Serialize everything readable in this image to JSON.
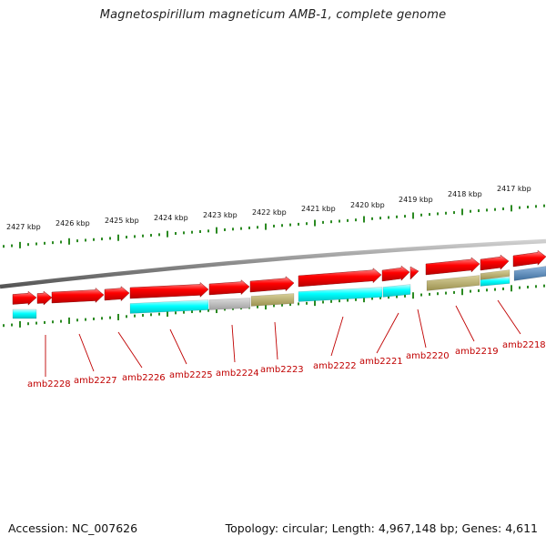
{
  "title": "Magnetospirillum magneticum AMB-1, complete genome",
  "footer": {
    "accession": "Accession: NC_007626",
    "stats": "Topology: circular; Length: 4,967,148 bp; Genes: 4,611"
  },
  "colors": {
    "forward_cds": "#ff0000",
    "cyan": "#00ffff",
    "gray": "#b4b4b4",
    "olive": "#b7ad6a",
    "steelblue": "#4f7fae",
    "tick": "#2b8a22",
    "label": "#c00000",
    "backbone": "#8a8a8a"
  },
  "kbp_labels": [
    "2427 kbp",
    "2426 kbp",
    "2425 kbp",
    "2424 kbp",
    "2423 kbp",
    "2422 kbp",
    "2421 kbp",
    "2420 kbp",
    "2419 kbp",
    "2418 kbp",
    "2417 kbp"
  ],
  "gene_labels": [
    "amb2228",
    "amb2227",
    "amb2226",
    "amb2225",
    "amb2224",
    "amb2223",
    "amb2222",
    "amb2221",
    "amb2220",
    "amb2219",
    "amb2218"
  ]
}
